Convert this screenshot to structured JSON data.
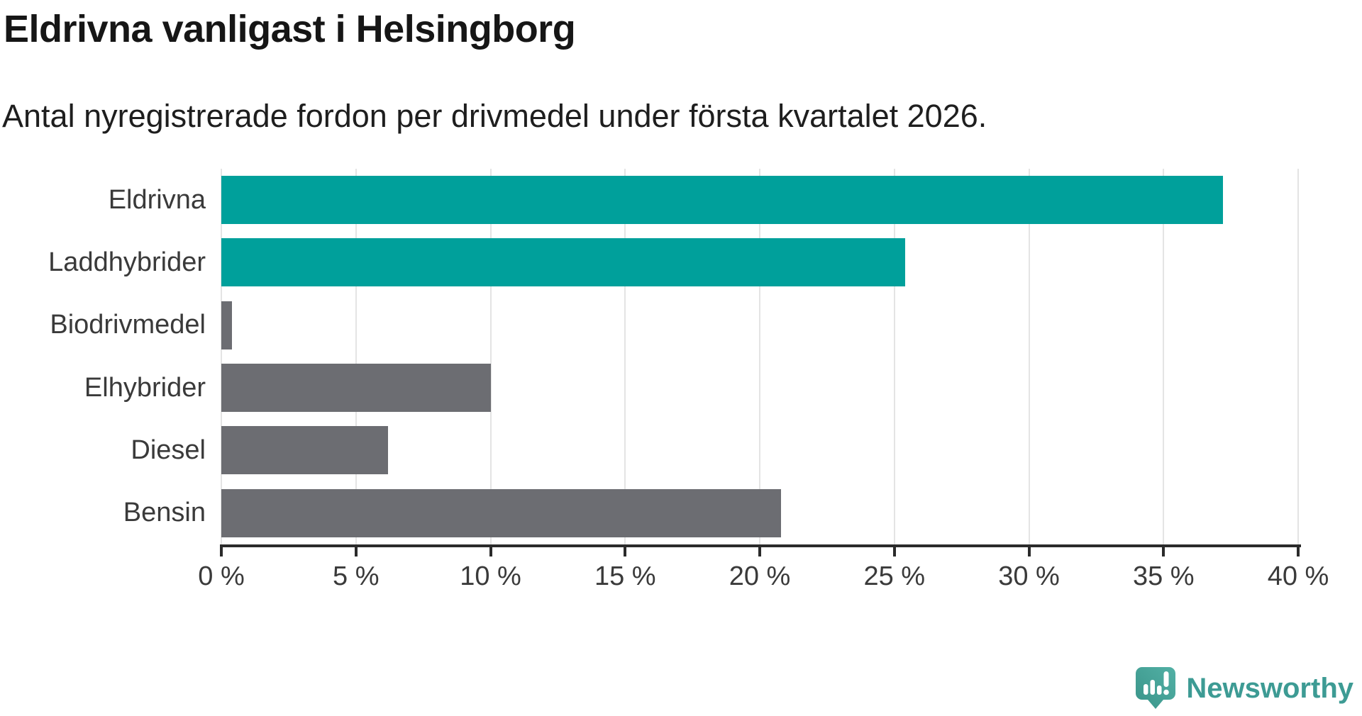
{
  "header": {
    "title": "Eldrivna vanligast i Helsingborg",
    "subtitle": "Antal nyregistrerade fordon per drivmedel under första kvartalet 2026."
  },
  "chart_data": {
    "type": "bar",
    "orientation": "horizontal",
    "title": "Eldrivna vanligast i Helsingborg",
    "subtitle": "Antal nyregistrerade fordon per drivmedel under första kvartalet 2026.",
    "categories": [
      "Eldrivna",
      "Laddhybrider",
      "Biodrivmedel",
      "Elhybrider",
      "Diesel",
      "Bensin"
    ],
    "values": [
      37.2,
      25.4,
      0.4,
      10.0,
      6.2,
      20.8
    ],
    "unit": "%",
    "bar_colors": [
      "#00a09b",
      "#00a09b",
      "#6c6d72",
      "#6c6d72",
      "#6c6d72",
      "#6c6d72"
    ],
    "xlim": [
      0,
      40
    ],
    "x_ticks": [
      0,
      5,
      10,
      15,
      20,
      25,
      30,
      35,
      40
    ],
    "x_tick_labels": [
      "0 %",
      "5 %",
      "10 %",
      "15 %",
      "20 %",
      "25 %",
      "30 %",
      "35 %",
      "40 %"
    ],
    "grid": "vertical-only",
    "legend": "none"
  },
  "colors": {
    "accent_teal": "#00a09b",
    "neutral_gray": "#6c6d72",
    "axis": "#2b2b2b",
    "gridline": "#e4e4e4",
    "label_text": "#3a3a3a",
    "logo_teal": "#44a79a",
    "logo_text_teal": "#3d9b94"
  },
  "logo": {
    "text": "Newsworthy",
    "icon": "newsworthy-chart-bubble-icon"
  }
}
